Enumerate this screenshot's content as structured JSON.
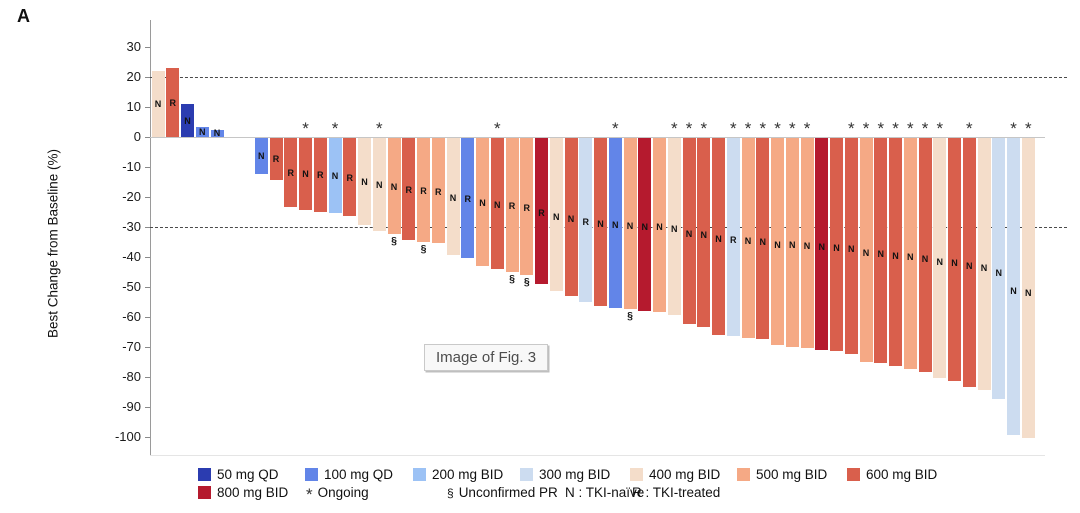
{
  "panel_label": "A",
  "watermark": {
    "text": "Image of Fig. 3"
  },
  "dose_colors": {
    "50": {
      "label": "50 mg QD",
      "color": "#2b3cb0"
    },
    "100": {
      "label": "100 mg QD",
      "color": "#6285e8"
    },
    "200": {
      "label": "200 mg BID",
      "color": "#9cc2f5"
    },
    "300": {
      "label": "300 mg BID",
      "color": "#ccdcf0"
    },
    "400": {
      "label": "400 mg BID",
      "color": "#f4ddca"
    },
    "500": {
      "label": "500 mg BID",
      "color": "#f5a985"
    },
    "600": {
      "label": "600 mg BID",
      "color": "#d95f4c"
    },
    "800": {
      "label": "800 mg BID",
      "color": "#b51a2e"
    }
  },
  "legend": {
    "row1": [
      {
        "dose": "50"
      },
      {
        "dose": "100"
      },
      {
        "dose": "200"
      },
      {
        "dose": "300"
      },
      {
        "dose": "400"
      },
      {
        "dose": "500"
      },
      {
        "dose": "600"
      }
    ],
    "row2_dose": {
      "dose": "800"
    },
    "row2_symbols": [
      {
        "symbol": "*",
        "kind": "star",
        "label": "Ongoing"
      },
      {
        "symbol": "§",
        "kind": "pr",
        "label": "Unconfirmed PR"
      },
      {
        "symbol": "N :",
        "kind": "letter",
        "label": "TKI-naïve"
      },
      {
        "symbol": "R :",
        "kind": "letter",
        "label": "TKI-treated"
      }
    ]
  },
  "chart_data": {
    "type": "bar",
    "title": "",
    "xlabel": "",
    "ylabel": "Best Change from Baseline (%)",
    "ylim": [
      -100,
      30
    ],
    "yticks": [
      30,
      20,
      10,
      0,
      -10,
      -20,
      -30,
      -40,
      -50,
      -60,
      -70,
      -80,
      -90,
      -100
    ],
    "reference_lines": [
      20,
      -30
    ],
    "grid": false,
    "legend_position": "bottom",
    "bars": [
      {
        "v": 22,
        "dose": "400",
        "tki": "N"
      },
      {
        "v": 23,
        "dose": "600",
        "tki": "R"
      },
      {
        "v": 11,
        "dose": "50",
        "tki": "N"
      },
      {
        "v": 3.5,
        "dose": "100",
        "tki": "N"
      },
      {
        "v": 2.5,
        "dose": "100",
        "tki": "N"
      },
      {
        "gap": true
      },
      {
        "gap": true
      },
      {
        "v": -12,
        "dose": "100",
        "tki": "N"
      },
      {
        "v": -14,
        "dose": "600",
        "tki": "R"
      },
      {
        "v": -23,
        "dose": "600",
        "tki": "R"
      },
      {
        "v": -24,
        "dose": "600",
        "tki": "N",
        "ongoing": true
      },
      {
        "v": -24.5,
        "dose": "600",
        "tki": "R"
      },
      {
        "v": -25,
        "dose": "200",
        "tki": "N",
        "ongoing": true
      },
      {
        "v": -26,
        "dose": "600",
        "tki": "R"
      },
      {
        "v": -29,
        "dose": "400",
        "tki": "N"
      },
      {
        "v": -31,
        "dose": "400",
        "tki": "N",
        "ongoing": true
      },
      {
        "v": -32,
        "dose": "500",
        "tki": "N",
        "unconfirmed_pr": true
      },
      {
        "v": -34,
        "dose": "600",
        "tki": "R"
      },
      {
        "v": -34.5,
        "dose": "500",
        "tki": "R",
        "unconfirmed_pr": true
      },
      {
        "v": -35,
        "dose": "500",
        "tki": "R"
      },
      {
        "v": -39,
        "dose": "400",
        "tki": "N"
      },
      {
        "v": -40,
        "dose": "100",
        "tki": "R"
      },
      {
        "v": -42.5,
        "dose": "500",
        "tki": "N"
      },
      {
        "v": -43.5,
        "dose": "600",
        "tki": "N",
        "ongoing": true
      },
      {
        "v": -44.5,
        "dose": "500",
        "tki": "R",
        "unconfirmed_pr": true
      },
      {
        "v": -45.5,
        "dose": "500",
        "tki": "R",
        "unconfirmed_pr": true
      },
      {
        "v": -48.5,
        "dose": "800",
        "tki": "R"
      },
      {
        "v": -51,
        "dose": "400",
        "tki": "N"
      },
      {
        "v": -52.5,
        "dose": "600",
        "tki": "N"
      },
      {
        "v": -54.5,
        "dose": "300",
        "tki": "R"
      },
      {
        "v": -56,
        "dose": "600",
        "tki": "N"
      },
      {
        "v": -56.5,
        "dose": "100",
        "tki": "N",
        "ongoing": true
      },
      {
        "v": -57,
        "dose": "500",
        "tki": "N",
        "unconfirmed_pr": true
      },
      {
        "v": -57.5,
        "dose": "800",
        "tki": "N"
      },
      {
        "v": -58,
        "dose": "500",
        "tki": "N"
      },
      {
        "v": -59,
        "dose": "400",
        "tki": "N",
        "ongoing": true
      },
      {
        "v": -62,
        "dose": "600",
        "tki": "N",
        "ongoing": true
      },
      {
        "v": -63,
        "dose": "600",
        "tki": "N",
        "ongoing": true
      },
      {
        "v": -65.5,
        "dose": "600",
        "tki": "N"
      },
      {
        "v": -66,
        "dose": "300",
        "tki": "R",
        "ongoing": true
      },
      {
        "v": -66.5,
        "dose": "500",
        "tki": "N",
        "ongoing": true
      },
      {
        "v": -67,
        "dose": "600",
        "tki": "N",
        "ongoing": true
      },
      {
        "v": -69,
        "dose": "500",
        "tki": "N",
        "ongoing": true
      },
      {
        "v": -69.5,
        "dose": "500",
        "tki": "N",
        "ongoing": true
      },
      {
        "v": -70,
        "dose": "500",
        "tki": "N",
        "ongoing": true
      },
      {
        "v": -70.5,
        "dose": "800",
        "tki": "N"
      },
      {
        "v": -71,
        "dose": "600",
        "tki": "N"
      },
      {
        "v": -72,
        "dose": "600",
        "tki": "N",
        "ongoing": true
      },
      {
        "v": -74.5,
        "dose": "500",
        "tki": "N",
        "ongoing": true
      },
      {
        "v": -75,
        "dose": "600",
        "tki": "N",
        "ongoing": true
      },
      {
        "v": -76,
        "dose": "600",
        "tki": "N",
        "ongoing": true
      },
      {
        "v": -77,
        "dose": "500",
        "tki": "N",
        "ongoing": true
      },
      {
        "v": -78,
        "dose": "600",
        "tki": "N",
        "ongoing": true
      },
      {
        "v": -80,
        "dose": "400",
        "tki": "N",
        "ongoing": true
      },
      {
        "v": -81,
        "dose": "600",
        "tki": "N"
      },
      {
        "v": -83,
        "dose": "600",
        "tki": "N",
        "ongoing": true
      },
      {
        "v": -84,
        "dose": "400",
        "tki": "N"
      },
      {
        "v": -87,
        "dose": "300",
        "tki": "N"
      },
      {
        "v": -99,
        "dose": "300",
        "tki": "N",
        "ongoing": true
      },
      {
        "v": -100,
        "dose": "400",
        "tki": "N",
        "ongoing": true
      }
    ]
  }
}
